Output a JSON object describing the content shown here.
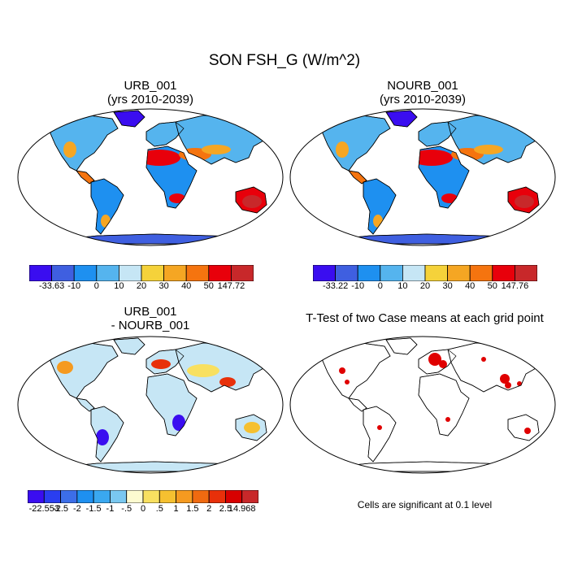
{
  "title": "SON FSH_G (W/m^2)",
  "panels": [
    {
      "title_line1": "URB_001",
      "title_line2": "(yrs 2010-2039)",
      "colorbar": {
        "labels": [
          "-33.63",
          "-10",
          "0",
          "10",
          "20",
          "30",
          "40",
          "50",
          "147.72"
        ],
        "colors": [
          "#3a0df0",
          "#3f5fe0",
          "#1e90f0",
          "#55b4ee",
          "#c6e6f5",
          "#f5d23a",
          "#f5a623",
          "#f5740f",
          "#e8000b",
          "#c8282a"
        ]
      }
    },
    {
      "title_line1": "NOURB_001",
      "title_line2": "(yrs 2010-2039)",
      "colorbar": {
        "labels": [
          "-33.22",
          "-10",
          "0",
          "10",
          "20",
          "30",
          "40",
          "50",
          "147.76"
        ],
        "colors": [
          "#3a0df0",
          "#3f5fe0",
          "#1e90f0",
          "#55b4ee",
          "#c6e6f5",
          "#f5d23a",
          "#f5a623",
          "#f5740f",
          "#e8000b",
          "#c8282a"
        ]
      }
    },
    {
      "title_line1": "URB_001",
      "title_line2": "- NOURB_001",
      "colorbar": {
        "labels": [
          "-22.553",
          "-2.5",
          "-2",
          "-1.5",
          "-1",
          "-.5",
          "0",
          ".5",
          "1",
          "1.5",
          "2",
          "2.5",
          "14.968"
        ],
        "colors": [
          "#3a0df0",
          "#2a3ef0",
          "#3c6ee8",
          "#1e90f0",
          "#3aa8f0",
          "#7ac8f0",
          "#fdfbd0",
          "#f8e060",
          "#f5c030",
          "#f59a20",
          "#f06a10",
          "#e8300a",
          "#d80000",
          "#c8282a"
        ]
      }
    },
    {
      "title_line1": "T-Test of two Case means at each grid point",
      "note": "Cells are significant at 0.1 level",
      "significance_color": "#e00000"
    }
  ]
}
